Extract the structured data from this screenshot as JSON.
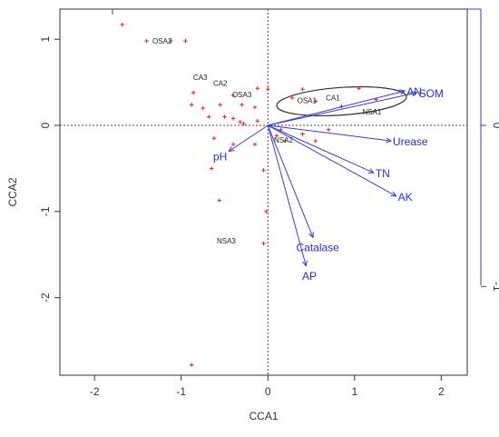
{
  "chart_data": {
    "type": "scatter",
    "xlabel": "CCA1",
    "ylabel": "CCA2",
    "xlim": [
      -2.4,
      2.3
    ],
    "ylim": [
      -2.9,
      1.35
    ],
    "x_ticks": [
      "-2",
      "-1",
      "0",
      "1",
      "2"
    ],
    "y_ticks": [
      "-2",
      "-1",
      "0",
      "1"
    ],
    "right_axis_ticks": [
      {
        "value": 0,
        "label": "0"
      },
      {
        "value": -1.87,
        "label": "-1"
      }
    ],
    "reference_lines": {
      "x": 0,
      "y": 0
    },
    "colors": {
      "points": "#ee2222",
      "arrows": "#3a3ae6",
      "env_text": "#2b2bd9",
      "right_axis": "#3a3ae6",
      "ellipse": "#333333"
    },
    "points": [
      {
        "x": -1.68,
        "y": 1.17
      },
      {
        "x": -1.4,
        "y": 0.98
      },
      {
        "x": -1.12,
        "y": 0.98
      },
      {
        "x": -0.95,
        "y": 0.98
      },
      {
        "x": -0.86,
        "y": 0.38
      },
      {
        "x": -0.88,
        "y": 0.24
      },
      {
        "x": -0.75,
        "y": 0.2
      },
      {
        "x": -0.55,
        "y": 0.24
      },
      {
        "x": -0.4,
        "y": 0.35
      },
      {
        "x": -0.12,
        "y": 0.43
      },
      {
        "x": 0.0,
        "y": 0.42
      },
      {
        "x": -0.3,
        "y": 0.24
      },
      {
        "x": -0.15,
        "y": 0.21
      },
      {
        "x": -0.68,
        "y": 0.1
      },
      {
        "x": -0.5,
        "y": 0.1
      },
      {
        "x": -0.4,
        "y": 0.08
      },
      {
        "x": -0.32,
        "y": 0.04
      },
      {
        "x": -0.28,
        "y": 0.02
      },
      {
        "x": -0.12,
        "y": 0.05
      },
      {
        "x": -0.62,
        "y": -0.15
      },
      {
        "x": -0.4,
        "y": -0.22
      },
      {
        "x": -0.65,
        "y": -0.5
      },
      {
        "x": -0.15,
        "y": -0.22
      },
      {
        "x": -0.05,
        "y": -0.52
      },
      {
        "x": -0.56,
        "y": -0.87
      },
      {
        "x": -0.02,
        "y": -1.0
      },
      {
        "x": -0.05,
        "y": -1.37
      },
      {
        "x": 0.15,
        "y": -0.05
      },
      {
        "x": 0.1,
        "y": -0.12
      },
      {
        "x": 0.2,
        "y": -0.18
      },
      {
        "x": 0.4,
        "y": -0.1
      },
      {
        "x": 0.55,
        "y": -0.18
      },
      {
        "x": 0.7,
        "y": -0.05
      },
      {
        "x": 0.28,
        "y": 0.32
      },
      {
        "x": 0.4,
        "y": 0.42
      },
      {
        "x": 0.55,
        "y": 0.28
      },
      {
        "x": 0.85,
        "y": 0.22
      },
      {
        "x": 1.05,
        "y": 0.43
      },
      {
        "x": 1.25,
        "y": 0.3
      },
      {
        "x": -0.88,
        "y": -2.78
      }
    ],
    "site_labels": [
      {
        "text": "OSA2",
        "x": -1.22,
        "y": 0.98
      },
      {
        "text": "CA3",
        "x": -0.78,
        "y": 0.56
      },
      {
        "text": "CA2",
        "x": -0.55,
        "y": 0.49
      },
      {
        "text": "OSA3",
        "x": -0.3,
        "y": 0.36
      },
      {
        "text": "OSA1",
        "x": 0.45,
        "y": 0.29
      },
      {
        "text": "CA1",
        "x": 0.75,
        "y": 0.32
      },
      {
        "text": "NSA1",
        "x": 1.2,
        "y": 0.16
      },
      {
        "text": "NSA2",
        "x": 0.18,
        "y": -0.17
      },
      {
        "text": "NSA3",
        "x": -0.48,
        "y": -1.34
      }
    ],
    "env_vectors": [
      {
        "name": "AN",
        "x": 1.58,
        "y": 0.4
      },
      {
        "name": "SOM",
        "x": 1.72,
        "y": 0.38
      },
      {
        "name": "Urease",
        "x": 1.42,
        "y": -0.18
      },
      {
        "name": "TN",
        "x": 1.22,
        "y": -0.55
      },
      {
        "name": "AK",
        "x": 1.48,
        "y": -0.82
      },
      {
        "name": "Catalase",
        "x": 0.52,
        "y": -1.3
      },
      {
        "name": "AP",
        "x": 0.44,
        "y": -1.63
      },
      {
        "name": "pH",
        "x": -0.45,
        "y": -0.3
      }
    ],
    "ellipse": {
      "cx": 0.85,
      "cy": 0.28,
      "rx": 0.75,
      "ry": 0.16,
      "angle": -4
    }
  }
}
